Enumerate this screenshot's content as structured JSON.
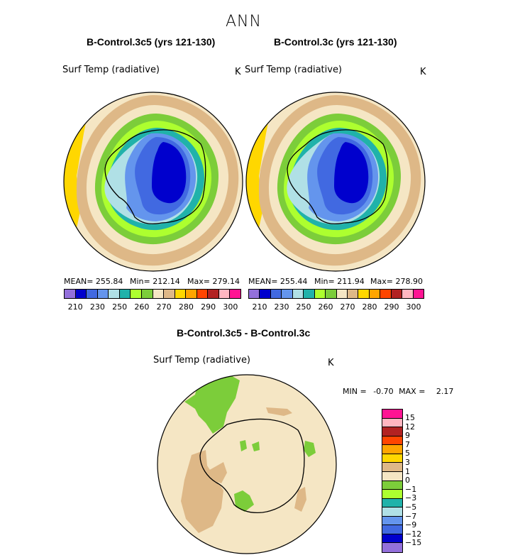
{
  "page": {
    "title": "ANN"
  },
  "left_panel": {
    "title": "B-Control.3c5 (yrs 121-130)",
    "variable": "Surf Temp (radiative)",
    "units": "K",
    "mean_text": "MEAN= 255.84",
    "min_text": "Min= 212.14",
    "max_text": "Max= 279.14",
    "mean": 255.84,
    "min": 212.14,
    "max": 279.14
  },
  "right_panel": {
    "title": "B-Control.3c (yrs 121-130)",
    "variable": "Surf Temp (radiative)",
    "units": "K",
    "mean_text": "MEAN= 255.44",
    "min_text": "Min= 211.94",
    "max_text": "Max= 278.90",
    "mean": 255.44,
    "min": 211.94,
    "max": 278.9
  },
  "abs_colorbar": {
    "colors": [
      "#9370DB",
      "#0000CD",
      "#4169E1",
      "#6495ED",
      "#B0E0E6",
      "#20B2AA",
      "#ADFF2F",
      "#7CCD3A",
      "#F5E6C4",
      "#DEB887",
      "#FFD700",
      "#FFA500",
      "#FF4500",
      "#B22222",
      "#FFB6C1",
      "#FF1493"
    ],
    "tick_labels": [
      "210",
      "230",
      "250",
      "260",
      "270",
      "280",
      "290",
      "300"
    ]
  },
  "diff_panel": {
    "title": "B-Control.3c5 - B-Control.3c",
    "variable": "Surf Temp (radiative)",
    "units": "K",
    "min_label": "MIN =",
    "min_value": "-0.70",
    "max_label": "MAX =",
    "max_value": "2.17",
    "min": -0.7,
    "max": 2.17
  },
  "diff_colorbar": {
    "colors": [
      "#FF1493",
      "#FFB6C1",
      "#B22222",
      "#FF4500",
      "#FFA500",
      "#FFD700",
      "#DEB887",
      "#F5E6C4",
      "#7CCD3A",
      "#ADFF2F",
      "#20B2AA",
      "#B0E0E6",
      "#6495ED",
      "#4169E1",
      "#0000CD",
      "#9370DB"
    ],
    "tick_labels": [
      "15",
      "12",
      "9",
      "7",
      "5",
      "3",
      "1",
      "0",
      "−1",
      "−3",
      "−5",
      "−7",
      "−9",
      "−12",
      "−15"
    ]
  }
}
